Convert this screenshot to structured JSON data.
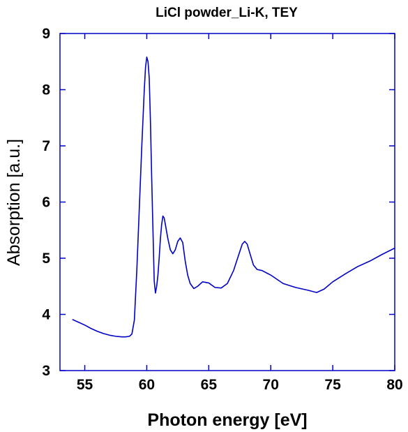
{
  "chart_data": {
    "type": "line",
    "title": "LiCl powder_Li-K, TEY",
    "xlabel": "Photon energy [eV]",
    "ylabel": "Absorption [a.u.]",
    "xlim": [
      53,
      80
    ],
    "ylim": [
      3,
      9
    ],
    "xticks": [
      55,
      60,
      65,
      70,
      75,
      80
    ],
    "yticks": [
      3,
      4,
      5,
      6,
      7,
      8,
      9
    ],
    "grid": false,
    "colors": {
      "line": "#0000c8",
      "axes": "#0000c8"
    },
    "series": [
      {
        "x": [
          54.0,
          54.5,
          55.0,
          55.5,
          56.0,
          56.5,
          57.0,
          57.5,
          58.0,
          58.3,
          58.6,
          58.8,
          59.0,
          59.2,
          59.4,
          59.6,
          59.8,
          59.9,
          60.0,
          60.1,
          60.2,
          60.3,
          60.4,
          60.5,
          60.6,
          60.7,
          60.8,
          60.9,
          61.0,
          61.1,
          61.2,
          61.3,
          61.4,
          61.5,
          61.7,
          61.9,
          62.1,
          62.3,
          62.5,
          62.7,
          62.9,
          63.1,
          63.3,
          63.5,
          63.8,
          64.1,
          64.5,
          65.0,
          65.5,
          66.0,
          66.5,
          67.0,
          67.4,
          67.7,
          67.9,
          68.1,
          68.3,
          68.6,
          68.9,
          69.3,
          70.0,
          71.0,
          72.0,
          73.0,
          73.7,
          74.3,
          75.0,
          76.0,
          77.0,
          78.0,
          79.0,
          80.0
        ],
        "values": [
          3.91,
          3.86,
          3.81,
          3.75,
          3.7,
          3.66,
          3.63,
          3.61,
          3.6,
          3.6,
          3.61,
          3.65,
          3.9,
          4.8,
          5.9,
          7.0,
          8.0,
          8.4,
          8.58,
          8.5,
          8.2,
          7.4,
          6.4,
          5.5,
          4.6,
          4.38,
          4.5,
          4.7,
          5.0,
          5.35,
          5.6,
          5.75,
          5.72,
          5.6,
          5.35,
          5.15,
          5.08,
          5.15,
          5.3,
          5.36,
          5.28,
          4.95,
          4.7,
          4.55,
          4.46,
          4.5,
          4.58,
          4.56,
          4.48,
          4.47,
          4.55,
          4.78,
          5.05,
          5.25,
          5.3,
          5.25,
          5.1,
          4.88,
          4.8,
          4.78,
          4.7,
          4.55,
          4.48,
          4.43,
          4.39,
          4.45,
          4.58,
          4.72,
          4.85,
          4.95,
          5.07,
          5.18
        ]
      }
    ]
  }
}
